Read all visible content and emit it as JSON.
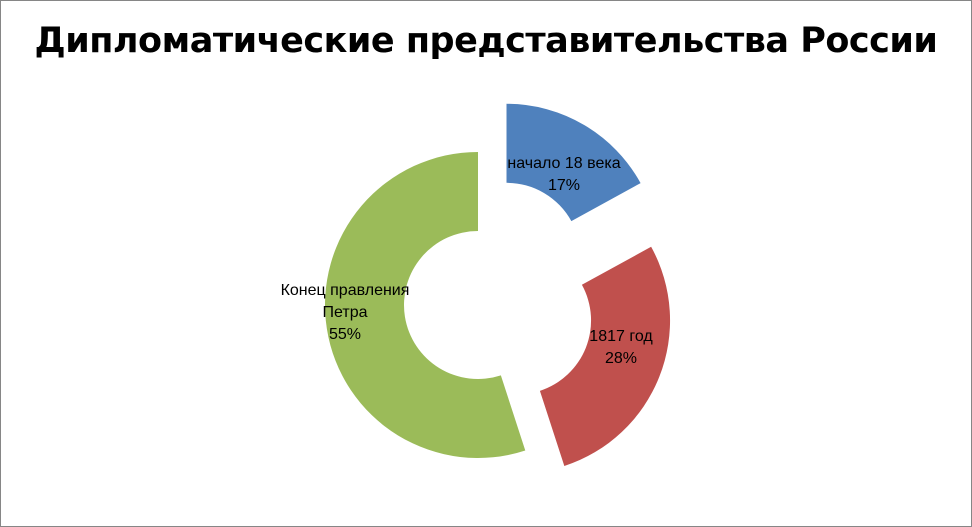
{
  "chart_data": {
    "type": "pie",
    "style": "exploded-doughnut",
    "title": "Дипломатические представительства России",
    "slices": [
      {
        "label_lines": [
          "начало 18 века"
        ],
        "percent_label": "17%",
        "value": 17,
        "color": "#4F81BD"
      },
      {
        "label_lines": [
          "1817 год"
        ],
        "percent_label": "28%",
        "value": 28,
        "color": "#C0504D"
      },
      {
        "label_lines": [
          "Конец правления",
          "Петра"
        ],
        "percent_label": "55%",
        "value": 55,
        "color": "#9BBB59"
      }
    ],
    "legend": "none"
  }
}
